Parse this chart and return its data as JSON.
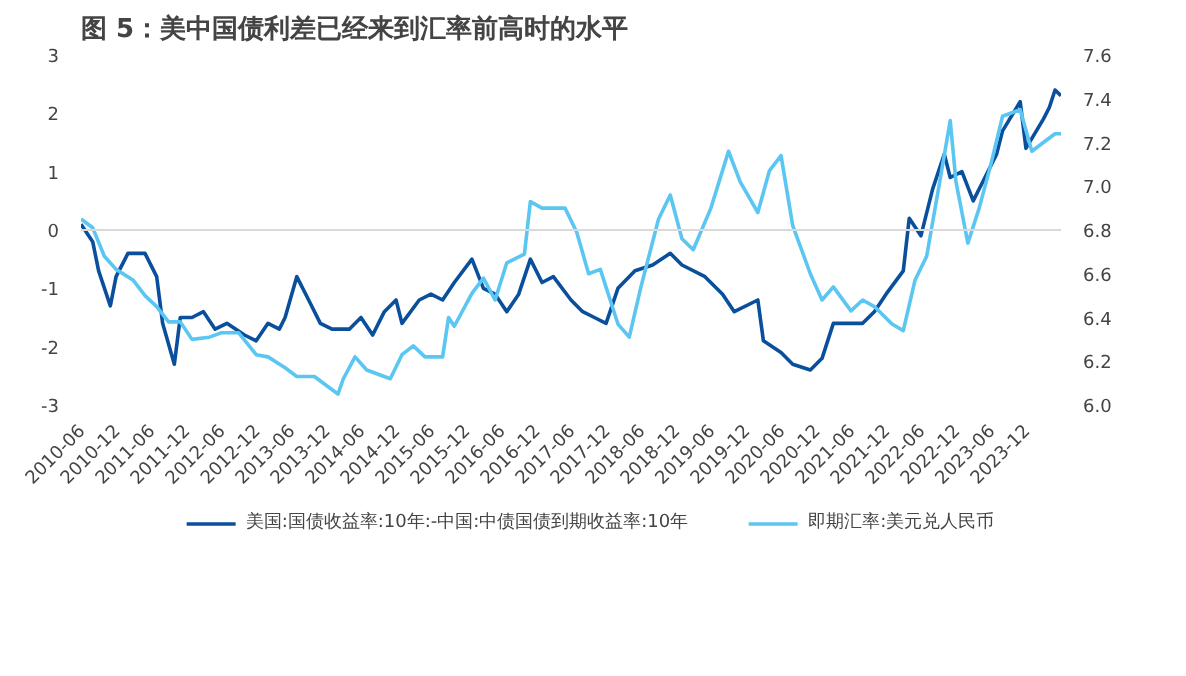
{
  "chart_data": {
    "type": "line",
    "title": "图 5：美中国债利差已经来到汇率前高时的水平",
    "series": [
      {
        "name": "美国:国债收益率:10年:-中国:中债国债到期收益率:10年",
        "color": "#0a4f9c",
        "axis": "y",
        "x": [
          "2010-06",
          "2010-08",
          "2010-09",
          "2010-11",
          "2010-12",
          "2011-02",
          "2011-04",
          "2011-05",
          "2011-07",
          "2011-08",
          "2011-10",
          "2011-11",
          "2012-01",
          "2012-03",
          "2012-05",
          "2012-07",
          "2012-10",
          "2012-12",
          "2013-02",
          "2013-04",
          "2013-05",
          "2013-07",
          "2013-09",
          "2013-11",
          "2014-01",
          "2014-04",
          "2014-06",
          "2014-08",
          "2014-10",
          "2014-12",
          "2015-01",
          "2015-04",
          "2015-06",
          "2015-08",
          "2015-10",
          "2016-01",
          "2016-03",
          "2016-05",
          "2016-07",
          "2016-09",
          "2016-11",
          "2017-01",
          "2017-03",
          "2017-06",
          "2017-08",
          "2017-10",
          "2017-12",
          "2018-02",
          "2018-05",
          "2018-08",
          "2018-11",
          "2019-01",
          "2019-05",
          "2019-08",
          "2019-10",
          "2020-02",
          "2020-03",
          "2020-06",
          "2020-08",
          "2020-11",
          "2021-01",
          "2021-03",
          "2021-06",
          "2021-08",
          "2021-10",
          "2021-12",
          "2022-03",
          "2022-04",
          "2022-06",
          "2022-08",
          "2022-10",
          "2022-11",
          "2023-01",
          "2023-03",
          "2023-05",
          "2023-07",
          "2023-08",
          "2023-11",
          "2023-12",
          "2024-03",
          "2024-04",
          "2024-05",
          "2024-06"
        ],
        "values": [
          0.1,
          -0.2,
          -0.7,
          -1.3,
          -0.8,
          -0.4,
          -0.4,
          -0.4,
          -0.8,
          -1.6,
          -2.3,
          -1.5,
          -1.5,
          -1.4,
          -1.7,
          -1.6,
          -1.8,
          -1.9,
          -1.6,
          -1.7,
          -1.5,
          -0.8,
          -1.2,
          -1.6,
          -1.7,
          -1.7,
          -1.5,
          -1.8,
          -1.4,
          -1.2,
          -1.6,
          -1.2,
          -1.1,
          -1.2,
          -0.9,
          -0.5,
          -1.0,
          -1.1,
          -1.4,
          -1.1,
          -0.5,
          -0.9,
          -0.8,
          -1.2,
          -1.4,
          -1.5,
          -1.6,
          -1.0,
          -0.7,
          -0.6,
          -0.4,
          -0.6,
          -0.8,
          -1.1,
          -1.4,
          -1.2,
          -1.9,
          -2.1,
          -2.3,
          -2.4,
          -2.2,
          -1.6,
          -1.6,
          -1.6,
          -1.4,
          -1.1,
          -0.7,
          0.2,
          -0.1,
          0.7,
          1.3,
          0.9,
          1.0,
          0.5,
          0.9,
          1.3,
          1.7,
          2.2,
          1.4,
          1.9,
          2.1,
          2.4,
          2.3
        ]
      },
      {
        "name": "即期汇率:美元兑人民币",
        "color": "#5bc6f2",
        "axis": "y2",
        "x": [
          "2010-06",
          "2010-08",
          "2010-10",
          "2010-12",
          "2011-03",
          "2011-05",
          "2011-07",
          "2011-09",
          "2011-11",
          "2012-01",
          "2012-04",
          "2012-06",
          "2012-09",
          "2012-12",
          "2013-02",
          "2013-05",
          "2013-07",
          "2013-10",
          "2013-12",
          "2014-02",
          "2014-03",
          "2014-05",
          "2014-07",
          "2014-11",
          "2015-01",
          "2015-03",
          "2015-05",
          "2015-08",
          "2015-09",
          "2015-10",
          "2016-01",
          "2016-03",
          "2016-05",
          "2016-07",
          "2016-10",
          "2016-11",
          "2017-01",
          "2017-05",
          "2017-07",
          "2017-09",
          "2017-11",
          "2018-02",
          "2018-04",
          "2018-06",
          "2018-09",
          "2018-11",
          "2019-01",
          "2019-03",
          "2019-06",
          "2019-09",
          "2019-11",
          "2020-02",
          "2020-04",
          "2020-06",
          "2020-08",
          "2020-11",
          "2021-01",
          "2021-03",
          "2021-06",
          "2021-08",
          "2021-10",
          "2022-01",
          "2022-03",
          "2022-05",
          "2022-07",
          "2022-09",
          "2022-11",
          "2022-12",
          "2023-02",
          "2023-04",
          "2023-06",
          "2023-08",
          "2023-11",
          "2024-01",
          "2024-03",
          "2024-05",
          "2024-06"
        ],
        "values": [
          6.85,
          6.81,
          6.68,
          6.62,
          6.57,
          6.5,
          6.45,
          6.38,
          6.38,
          6.3,
          6.31,
          6.33,
          6.33,
          6.23,
          6.22,
          6.17,
          6.13,
          6.13,
          6.09,
          6.05,
          6.12,
          6.22,
          6.16,
          6.12,
          6.23,
          6.27,
          6.22,
          6.22,
          6.4,
          6.36,
          6.51,
          6.58,
          6.48,
          6.65,
          6.69,
          6.93,
          6.9,
          6.9,
          6.79,
          6.6,
          6.62,
          6.37,
          6.31,
          6.54,
          6.85,
          6.96,
          6.76,
          6.71,
          6.9,
          7.16,
          7.02,
          6.88,
          7.07,
          7.14,
          6.82,
          6.6,
          6.48,
          6.54,
          6.43,
          6.48,
          6.45,
          6.37,
          6.34,
          6.57,
          6.68,
          6.99,
          7.3,
          7.02,
          6.74,
          6.9,
          7.1,
          7.32,
          7.35,
          7.16,
          7.2,
          7.24,
          7.24
        ]
      }
    ],
    "xlim": [
      "2010-06",
      "2024-06"
    ],
    "xticks": [
      "2010-06",
      "2010-12",
      "2011-06",
      "2011-12",
      "2012-06",
      "2012-12",
      "2013-06",
      "2013-12",
      "2014-06",
      "2014-12",
      "2015-06",
      "2015-12",
      "2016-06",
      "2016-12",
      "2017-06",
      "2017-12",
      "2018-06",
      "2018-12",
      "2019-06",
      "2019-12",
      "2020-06",
      "2020-12",
      "2021-06",
      "2021-12",
      "2022-06",
      "2022-12",
      "2023-06",
      "2023-12"
    ],
    "ylim": [
      -3,
      3
    ],
    "yticks": [
      -3,
      -2,
      -1,
      0,
      1,
      2,
      3
    ],
    "y2lim": [
      6.0,
      7.6
    ],
    "y2ticks": [
      {
        "value": 6.0,
        "label": "6.0"
      },
      6.2,
      6.4,
      6.6,
      6.8,
      {
        "value": 7.0,
        "label": "7.0"
      },
      7.2,
      7.4,
      7.6
    ],
    "ref_lines": [
      {
        "axis": "y",
        "value": 0,
        "label": null,
        "color": "#d9d9d9"
      }
    ],
    "grid": false,
    "legend": "bottom",
    "line_style": "solid",
    "marker": "none"
  }
}
